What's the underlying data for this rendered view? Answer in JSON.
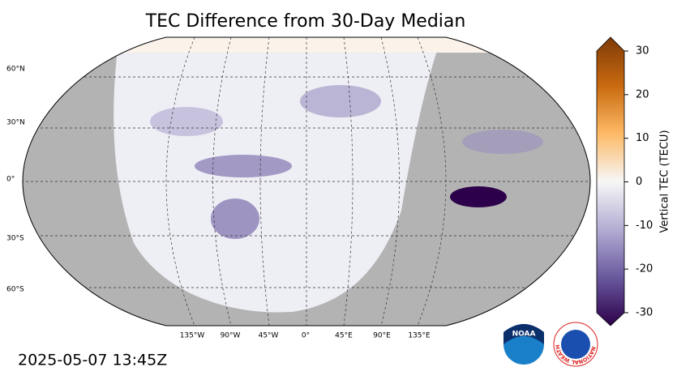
{
  "title": "TEC Difference from 30-Day Median",
  "timestamp": "2025-05-07 13:45Z",
  "colorbar": {
    "label": "Vertical TEC (TECU)",
    "lim": [
      -30,
      30
    ],
    "ticks": [
      -30,
      -20,
      -10,
      0,
      10,
      20,
      30
    ]
  },
  "lat_labels": [
    "60°N",
    "30°N",
    "0°",
    "30°S",
    "60°S"
  ],
  "lon_labels": [
    "135°W",
    "90°W",
    "45°W",
    "0°",
    "45°E",
    "90°E",
    "135°E"
  ],
  "logos": {
    "noaa": "NOAA",
    "nws": "NATIONAL WEATHER SERVICE"
  }
}
